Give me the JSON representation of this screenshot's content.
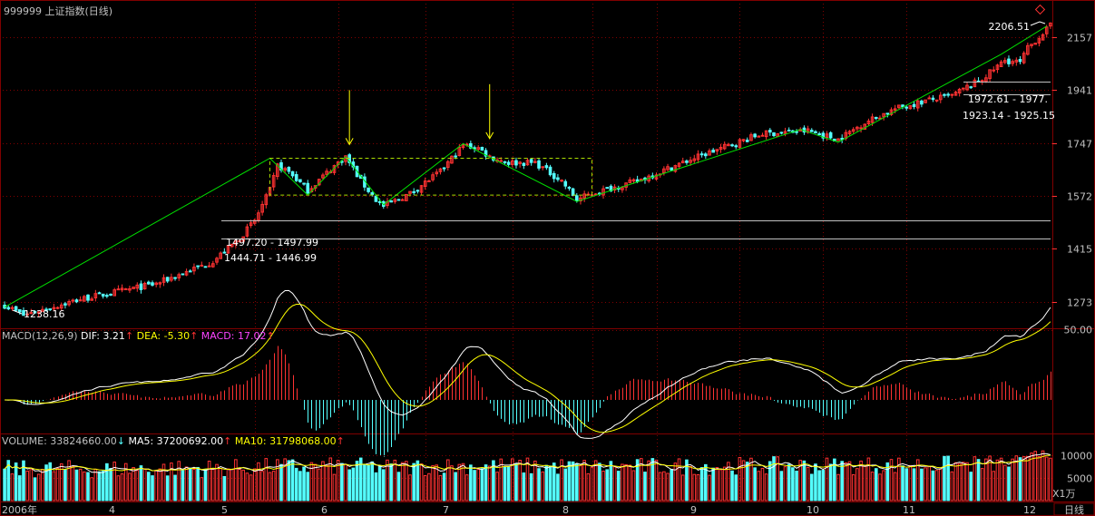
{
  "window": {
    "title": "999999 上证指数(日线)",
    "period_button": "日线"
  },
  "colors": {
    "background": "#000000",
    "up": "#ff3232",
    "down": "#54ffff",
    "grid": "#800000",
    "axis_text": "#c0c0c0",
    "trend_line": "#00e000",
    "annotation_arrow": "#ffff00",
    "ma_white": "#ffffff",
    "ma_yellow": "#ffff00",
    "macd_magenta": "#ff44ff",
    "hline": "#c0c0c0"
  },
  "panels": {
    "price": {
      "ticks": [
        "2157",
        "1941",
        "1747",
        "1572",
        "1415",
        "1273"
      ],
      "annotations": {
        "high_label": "2206.51",
        "low_label": "1238.16",
        "gap1": "1497.20 - 1497.99",
        "gap2": "1444.71 - 1446.99",
        "gap3": "1972.61 - 1977.",
        "gap4": "1923.14 - 1925.15"
      }
    },
    "macd": {
      "label": "MACD(12,26,9)",
      "dif": "DIF: 3.21",
      "dea": "DEA: -5.30",
      "macd": "MACD: 17.02",
      "tick": "50.00"
    },
    "volume": {
      "label": "VOLUME: 33824660.00",
      "ma5": "MA5: 37200692.00",
      "ma10": "MA10: 31798068.00",
      "ticks": [
        "10000",
        "5000"
      ],
      "unit": "X1万"
    }
  },
  "x_axis": {
    "labels": [
      "2006年",
      "4",
      "5",
      "6",
      "7",
      "8",
      "9",
      "10",
      "11",
      "12"
    ]
  },
  "chart_data": {
    "type": "candlestick",
    "title": "999999 上证指数(日线)",
    "y_ticks": [
      1273,
      1415,
      1572,
      1747,
      1941,
      2157
    ],
    "range_high": 2206.51,
    "range_low": 1238.16,
    "months": [
      "2006-03",
      "2006-04",
      "2006-05",
      "2006-06",
      "2006-07",
      "2006-08",
      "2006-09",
      "2006-10",
      "2006-11",
      "2006-12"
    ],
    "waypoints": [
      [
        0,
        1265
      ],
      [
        5,
        1240
      ],
      [
        20,
        1280
      ],
      [
        40,
        1320
      ],
      [
        55,
        1380
      ],
      [
        62,
        1445
      ],
      [
        66,
        1497
      ],
      [
        70,
        1590
      ],
      [
        72,
        1670
      ],
      [
        75,
        1650
      ],
      [
        80,
        1590
      ],
      [
        88,
        1680
      ],
      [
        90,
        1700
      ],
      [
        94,
        1620
      ],
      [
        98,
        1560
      ],
      [
        100,
        1540
      ],
      [
        107,
        1580
      ],
      [
        115,
        1650
      ],
      [
        121,
        1740
      ],
      [
        125,
        1730
      ],
      [
        128,
        1700
      ],
      [
        133,
        1680
      ],
      [
        140,
        1680
      ],
      [
        147,
        1620
      ],
      [
        151,
        1560
      ],
      [
        155,
        1580
      ],
      [
        167,
        1620
      ],
      [
        175,
        1660
      ],
      [
        185,
        1710
      ],
      [
        200,
        1780
      ],
      [
        212,
        1790
      ],
      [
        220,
        1760
      ],
      [
        227,
        1820
      ],
      [
        235,
        1870
      ],
      [
        243,
        1900
      ],
      [
        250,
        1920
      ],
      [
        258,
        1985
      ],
      [
        264,
        2060
      ],
      [
        268,
        2050
      ],
      [
        270,
        2110
      ],
      [
        274,
        2175
      ],
      [
        276,
        2206
      ]
    ],
    "horizontal_lines": [
      1497.6,
      1445.8,
      1975.0,
      1924.1
    ],
    "zigzag": [
      [
        0,
        1260
      ],
      [
        70,
        1695
      ],
      [
        80,
        1575
      ],
      [
        90,
        1700
      ],
      [
        100,
        1545
      ],
      [
        121,
        1745
      ],
      [
        151,
        1555
      ],
      [
        210,
        1795
      ],
      [
        220,
        1750
      ],
      [
        263,
        2085
      ],
      [
        275,
        2205
      ]
    ],
    "box": {
      "from": 70,
      "to": 155,
      "top": 1695,
      "bottom": 1575
    },
    "arrows_at": [
      91,
      128
    ],
    "volume_ticks": [
      10000,
      5000
    ],
    "macd_tick": 50.0
  }
}
